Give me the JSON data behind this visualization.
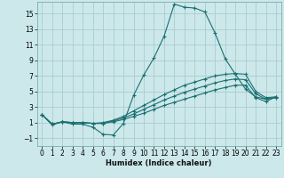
{
  "title": "",
  "xlabel": "Humidex (Indice chaleur)",
  "ylabel": "",
  "background_color": "#cce8eb",
  "grid_color": "#aacccc",
  "line_color": "#1a7070",
  "xlim": [
    -0.5,
    23.5
  ],
  "ylim": [
    -2.0,
    16.5
  ],
  "xticks": [
    0,
    1,
    2,
    3,
    4,
    5,
    6,
    7,
    8,
    9,
    10,
    11,
    12,
    13,
    14,
    15,
    16,
    17,
    18,
    19,
    20,
    21,
    22,
    23
  ],
  "yticks": [
    -1,
    1,
    3,
    5,
    7,
    9,
    11,
    13,
    15
  ],
  "series": [
    [
      2.0,
      0.7,
      1.1,
      0.8,
      0.8,
      0.4,
      -0.5,
      -0.6,
      0.9,
      4.5,
      7.1,
      9.3,
      12.1,
      16.2,
      15.8,
      15.7,
      15.2,
      12.5,
      9.2,
      7.2,
      5.3,
      4.3,
      4.0,
      4.2
    ],
    [
      2.0,
      0.8,
      1.1,
      1.0,
      1.0,
      0.9,
      1.0,
      1.3,
      1.8,
      2.5,
      3.2,
      3.9,
      4.6,
      5.2,
      5.8,
      6.2,
      6.6,
      7.0,
      7.2,
      7.3,
      7.2,
      5.0,
      4.2,
      4.3
    ],
    [
      2.0,
      0.8,
      1.1,
      1.0,
      1.0,
      0.9,
      0.9,
      1.2,
      1.6,
      2.1,
      2.7,
      3.3,
      3.9,
      4.4,
      4.9,
      5.3,
      5.7,
      6.1,
      6.4,
      6.6,
      6.5,
      4.7,
      4.0,
      4.3
    ],
    [
      2.0,
      0.8,
      1.1,
      1.0,
      1.0,
      0.9,
      0.9,
      1.1,
      1.4,
      1.8,
      2.2,
      2.7,
      3.2,
      3.6,
      4.0,
      4.4,
      4.8,
      5.2,
      5.5,
      5.8,
      5.8,
      4.2,
      3.7,
      4.3
    ]
  ]
}
